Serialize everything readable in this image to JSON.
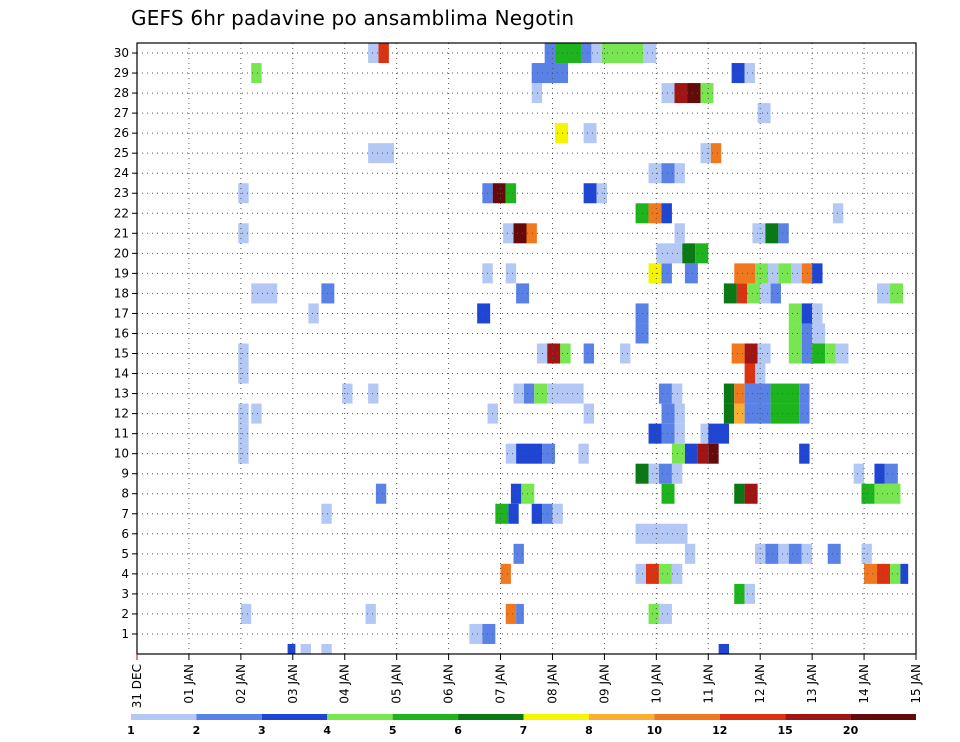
{
  "chart_data": {
    "type": "heatmap",
    "title": "GEFS 6hr padavine po ansamblima Negotin",
    "y_ticks": [
      "1",
      "2",
      "3",
      "4",
      "5",
      "6",
      "7",
      "8",
      "9",
      "10",
      "11",
      "12",
      "13",
      "14",
      "15",
      "16",
      "17",
      "18",
      "19",
      "20",
      "21",
      "22",
      "23",
      "24",
      "25",
      "26",
      "27",
      "28",
      "29",
      "30"
    ],
    "x_ticks": [
      "31 DEC",
      "01 JAN",
      "02 JAN",
      "03 JAN",
      "04 JAN",
      "05 JAN",
      "06 JAN",
      "07 JAN",
      "08 JAN",
      "09 JAN",
      "10 JAN",
      "11 JAN",
      "12 JAN",
      "13 JAN",
      "14 JAN",
      "15 JAN"
    ],
    "x_range": [
      "31 DEC",
      "15 JAN"
    ],
    "y_range": [
      0,
      30
    ],
    "grid": true,
    "colorbar": {
      "labels": [
        "1",
        "2",
        "3",
        "4",
        "5",
        "6",
        "7",
        "8",
        "10",
        "12",
        "15",
        "20"
      ],
      "colors": [
        "#b4c8f5",
        "#5a82e6",
        "#1e46d2",
        "#78e650",
        "#1eb41e",
        "#0a7814",
        "#f5f500",
        "#faaf32",
        "#f0781e",
        "#dc3214",
        "#a01414",
        "#640a0a"
      ]
    },
    "cells": [
      {
        "m": 0,
        "c": [
          [
            11.2,
            11.4,
            3
          ],
          [
            2.9,
            3.05,
            3
          ],
          [
            3.55,
            3.75,
            1
          ],
          [
            3.15,
            3.35,
            1
          ]
        ]
      },
      {
        "m": 1,
        "c": [
          [
            6.4,
            6.65,
            1
          ],
          [
            6.65,
            6.9,
            2
          ]
        ]
      },
      {
        "m": 2,
        "c": [
          [
            2.0,
            2.2,
            1
          ],
          [
            4.4,
            4.6,
            1
          ],
          [
            7.1,
            7.3,
            9
          ],
          [
            7.3,
            7.45,
            2
          ],
          [
            9.85,
            10.05,
            4
          ],
          [
            10.05,
            10.3,
            1
          ]
        ]
      },
      {
        "m": 3,
        "c": [
          [
            11.5,
            11.7,
            5
          ],
          [
            11.7,
            11.9,
            1
          ]
        ]
      },
      {
        "m": 4,
        "c": [
          [
            7.0,
            7.2,
            9
          ],
          [
            9.6,
            9.8,
            1
          ],
          [
            9.8,
            10.05,
            10
          ],
          [
            10.05,
            10.3,
            4
          ],
          [
            10.3,
            10.5,
            1
          ],
          [
            14.0,
            14.25,
            9
          ],
          [
            14.25,
            14.5,
            10
          ],
          [
            14.5,
            14.7,
            4
          ],
          [
            14.7,
            14.85,
            3
          ]
        ]
      },
      {
        "m": 5,
        "c": [
          [
            7.25,
            7.45,
            2
          ],
          [
            10.55,
            10.75,
            1
          ],
          [
            11.9,
            12.1,
            1
          ],
          [
            12.1,
            12.35,
            2
          ],
          [
            12.35,
            12.55,
            1
          ],
          [
            12.55,
            12.8,
            2
          ],
          [
            12.8,
            13.0,
            1
          ],
          [
            13.3,
            13.55,
            2
          ],
          [
            13.95,
            14.15,
            1
          ]
        ]
      },
      {
        "m": 6,
        "c": [
          [
            9.6,
            10.6,
            1
          ]
        ]
      },
      {
        "m": 7,
        "c": [
          [
            3.55,
            3.75,
            1
          ],
          [
            6.9,
            7.15,
            5
          ],
          [
            7.15,
            7.35,
            3
          ],
          [
            7.6,
            7.8,
            3
          ],
          [
            7.8,
            8.0,
            2
          ],
          [
            8.0,
            8.2,
            1
          ]
        ]
      },
      {
        "m": 8,
        "c": [
          [
            4.6,
            4.8,
            2
          ],
          [
            7.2,
            7.4,
            3
          ],
          [
            7.4,
            7.65,
            4
          ],
          [
            10.1,
            10.35,
            5
          ],
          [
            11.5,
            11.7,
            6
          ],
          [
            11.7,
            11.95,
            11
          ],
          [
            13.95,
            14.2,
            5
          ],
          [
            14.2,
            14.7,
            4
          ]
        ]
      },
      {
        "m": 9,
        "c": [
          [
            9.6,
            9.85,
            6
          ],
          [
            9.85,
            10.05,
            1
          ],
          [
            10.05,
            10.3,
            2
          ],
          [
            10.3,
            10.5,
            1
          ],
          [
            13.8,
            14.0,
            1
          ],
          [
            14.2,
            14.4,
            3
          ],
          [
            14.4,
            14.65,
            2
          ]
        ]
      },
      {
        "m": 10,
        "c": [
          [
            1.95,
            2.15,
            1
          ],
          [
            7.1,
            7.3,
            1
          ],
          [
            7.3,
            7.8,
            3
          ],
          [
            7.8,
            8.05,
            2
          ],
          [
            8.5,
            8.7,
            1
          ],
          [
            10.3,
            10.55,
            4
          ],
          [
            10.55,
            10.8,
            3
          ],
          [
            10.8,
            11.0,
            11
          ],
          [
            11.0,
            11.2,
            12
          ],
          [
            12.75,
            12.95,
            3
          ]
        ]
      },
      {
        "m": 11,
        "c": [
          [
            1.95,
            2.15,
            1
          ],
          [
            9.85,
            10.1,
            3
          ],
          [
            10.1,
            10.35,
            2
          ],
          [
            10.35,
            10.55,
            1
          ],
          [
            10.85,
            11.0,
            1
          ],
          [
            11.0,
            11.4,
            3
          ]
        ]
      },
      {
        "m": 12,
        "c": [
          [
            1.95,
            2.15,
            1
          ],
          [
            2.2,
            2.4,
            1
          ],
          [
            6.75,
            6.95,
            1
          ],
          [
            8.6,
            8.8,
            1
          ],
          [
            10.1,
            10.35,
            2
          ],
          [
            10.35,
            10.55,
            1
          ],
          [
            11.3,
            11.5,
            6
          ],
          [
            11.5,
            11.7,
            8
          ],
          [
            11.7,
            12.2,
            2
          ],
          [
            12.2,
            12.75,
            5
          ],
          [
            12.75,
            12.95,
            2
          ]
        ]
      },
      {
        "m": 13,
        "c": [
          [
            3.95,
            4.15,
            1
          ],
          [
            4.45,
            4.65,
            1
          ],
          [
            7.25,
            7.45,
            1
          ],
          [
            7.45,
            7.65,
            2
          ],
          [
            7.65,
            7.9,
            4
          ],
          [
            7.9,
            8.6,
            1
          ],
          [
            10.05,
            10.3,
            2
          ],
          [
            10.3,
            10.5,
            1
          ],
          [
            11.3,
            11.5,
            6
          ],
          [
            11.5,
            11.7,
            9
          ],
          [
            11.7,
            12.2,
            2
          ],
          [
            12.2,
            12.75,
            5
          ],
          [
            12.75,
            12.95,
            2
          ]
        ]
      },
      {
        "m": 14,
        "c": [
          [
            1.95,
            2.15,
            1
          ],
          [
            11.7,
            11.9,
            10
          ],
          [
            11.9,
            12.1,
            1
          ]
        ]
      },
      {
        "m": 15,
        "c": [
          [
            1.95,
            2.15,
            1
          ],
          [
            7.7,
            7.9,
            1
          ],
          [
            7.9,
            8.15,
            11
          ],
          [
            8.15,
            8.35,
            4
          ],
          [
            8.6,
            8.8,
            2
          ],
          [
            9.3,
            9.5,
            1
          ],
          [
            11.45,
            11.7,
            9
          ],
          [
            11.7,
            11.95,
            11
          ],
          [
            11.95,
            12.2,
            1
          ],
          [
            12.55,
            12.8,
            4
          ],
          [
            12.8,
            13.0,
            2
          ],
          [
            13.0,
            13.25,
            5
          ],
          [
            13.25,
            13.45,
            4
          ],
          [
            13.45,
            13.7,
            1
          ]
        ]
      },
      {
        "m": 16,
        "c": [
          [
            9.6,
            9.85,
            2
          ],
          [
            12.55,
            12.8,
            4
          ],
          [
            12.8,
            13.0,
            2
          ],
          [
            13.0,
            13.25,
            1
          ]
        ]
      },
      {
        "m": 17,
        "c": [
          [
            3.3,
            3.5,
            1
          ],
          [
            6.55,
            6.8,
            3
          ],
          [
            9.6,
            9.85,
            2
          ],
          [
            12.55,
            12.8,
            4
          ],
          [
            12.8,
            13.0,
            3
          ],
          [
            13.0,
            13.2,
            1
          ]
        ]
      },
      {
        "m": 18,
        "c": [
          [
            2.2,
            2.7,
            1
          ],
          [
            3.55,
            3.8,
            2
          ],
          [
            7.3,
            7.55,
            2
          ],
          [
            11.3,
            11.55,
            6
          ],
          [
            11.55,
            11.75,
            10
          ],
          [
            11.75,
            12.0,
            4
          ],
          [
            12.0,
            12.2,
            1
          ],
          [
            12.2,
            12.4,
            2
          ],
          [
            14.25,
            14.5,
            1
          ],
          [
            14.5,
            14.75,
            4
          ]
        ]
      },
      {
        "m": 19,
        "c": [
          [
            6.65,
            6.85,
            1
          ],
          [
            7.1,
            7.3,
            1
          ],
          [
            9.85,
            10.1,
            7
          ],
          [
            10.1,
            10.3,
            2
          ],
          [
            10.55,
            10.8,
            2
          ],
          [
            11.5,
            11.9,
            9
          ],
          [
            11.9,
            12.15,
            4
          ],
          [
            12.15,
            12.35,
            1
          ],
          [
            12.35,
            12.6,
            4
          ],
          [
            12.6,
            12.8,
            1
          ],
          [
            12.8,
            13.0,
            9
          ],
          [
            13.0,
            13.2,
            3
          ]
        ]
      },
      {
        "m": 20,
        "c": [
          [
            10.0,
            10.5,
            1
          ],
          [
            10.5,
            10.75,
            6
          ],
          [
            10.75,
            11.0,
            5
          ]
        ]
      },
      {
        "m": 21,
        "c": [
          [
            1.95,
            2.15,
            1
          ],
          [
            7.05,
            7.25,
            1
          ],
          [
            7.25,
            7.5,
            12
          ],
          [
            7.5,
            7.7,
            9
          ],
          [
            10.35,
            10.55,
            1
          ],
          [
            11.85,
            12.1,
            1
          ],
          [
            12.1,
            12.35,
            6
          ],
          [
            12.35,
            12.55,
            2
          ]
        ]
      },
      {
        "m": 22,
        "c": [
          [
            9.6,
            9.85,
            5
          ],
          [
            9.85,
            10.1,
            9
          ],
          [
            10.1,
            10.3,
            3
          ],
          [
            13.4,
            13.6,
            1
          ]
        ]
      },
      {
        "m": 23,
        "c": [
          [
            1.95,
            2.15,
            1
          ],
          [
            6.65,
            6.85,
            2
          ],
          [
            6.85,
            7.1,
            12
          ],
          [
            7.1,
            7.3,
            5
          ],
          [
            8.6,
            8.85,
            3
          ],
          [
            8.85,
            9.05,
            1
          ]
        ]
      },
      {
        "m": 24,
        "c": [
          [
            9.85,
            10.1,
            1
          ],
          [
            10.1,
            10.35,
            2
          ],
          [
            10.35,
            10.55,
            1
          ]
        ]
      },
      {
        "m": 25,
        "c": [
          [
            4.45,
            4.95,
            1
          ],
          [
            10.85,
            11.05,
            1
          ],
          [
            11.05,
            11.25,
            9
          ]
        ]
      },
      {
        "m": 26,
        "c": [
          [
            8.05,
            8.3,
            7
          ],
          [
            8.6,
            8.85,
            1
          ]
        ]
      },
      {
        "m": 27,
        "c": [
          [
            11.95,
            12.2,
            1
          ]
        ]
      },
      {
        "m": 28,
        "c": [
          [
            7.6,
            7.8,
            1
          ],
          [
            10.1,
            10.35,
            1
          ],
          [
            10.35,
            10.6,
            11
          ],
          [
            10.6,
            10.85,
            12
          ],
          [
            10.85,
            11.1,
            4
          ]
        ]
      },
      {
        "m": 29,
        "c": [
          [
            2.2,
            2.4,
            4
          ],
          [
            7.6,
            8.3,
            2
          ],
          [
            11.45,
            11.7,
            3
          ],
          [
            11.7,
            11.9,
            1
          ]
        ]
      },
      {
        "m": 30,
        "c": [
          [
            4.45,
            4.65,
            1
          ],
          [
            4.65,
            4.85,
            10
          ],
          [
            7.85,
            8.05,
            2
          ],
          [
            8.05,
            8.55,
            5
          ],
          [
            8.55,
            8.75,
            2
          ],
          [
            8.75,
            8.95,
            1
          ],
          [
            8.95,
            9.75,
            4
          ],
          [
            9.75,
            10.0,
            1
          ]
        ]
      }
    ]
  }
}
